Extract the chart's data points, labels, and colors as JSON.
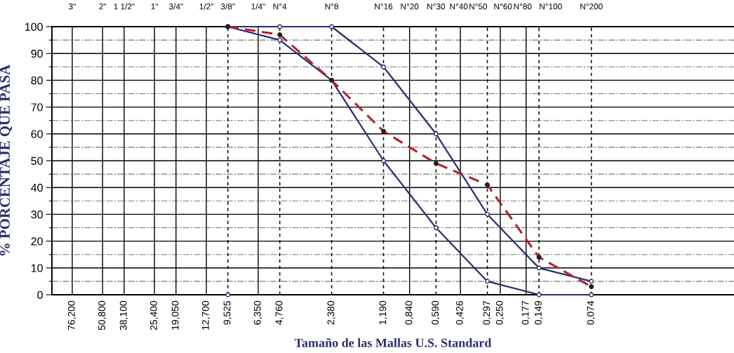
{
  "chart_data": {
    "type": "line",
    "xlabel": "Tamaño de las Mallas U.S. Standard",
    "ylabel": "% PORCENTAJE QUE PASA",
    "log": "x",
    "xlim": [
      100,
      0.011
    ],
    "ylim": [
      0,
      100
    ],
    "xticks": [
      {
        "value": 76.2,
        "label": "76,200"
      },
      {
        "value": 50.8,
        "label": "50,800"
      },
      {
        "value": 38.1,
        "label": "38,100"
      },
      {
        "value": 25.4,
        "label": "25,400"
      },
      {
        "value": 19.05,
        "label": "19,050"
      },
      {
        "value": 12.7,
        "label": "12,700"
      },
      {
        "value": 9.525,
        "label": "9,525"
      },
      {
        "value": 6.35,
        "label": "6,350"
      },
      {
        "value": 4.76,
        "label": "4,760"
      },
      {
        "value": 2.38,
        "label": "2,380"
      },
      {
        "value": 1.19,
        "label": "1,190"
      },
      {
        "value": 0.84,
        "label": "0,840"
      },
      {
        "value": 0.59,
        "label": "0,590"
      },
      {
        "value": 0.426,
        "label": "0,426"
      },
      {
        "value": 0.297,
        "label": "0,297"
      },
      {
        "value": 0.25,
        "label": "0,250"
      },
      {
        "value": 0.177,
        "label": "0,177"
      },
      {
        "value": 0.149,
        "label": "0,149"
      },
      {
        "value": 0.074,
        "label": "0,074"
      }
    ],
    "annotations": [
      "3\"",
      "2\"",
      "1 1/2\"",
      "1\"",
      "3/4\"",
      "1/2\"",
      "3/8\"",
      "1/4\"",
      "N°4",
      "N°8",
      "N°16",
      "N°20",
      "N°30",
      "N°40",
      "N°50",
      "N°60",
      "N°80",
      "N°100",
      "N°200"
    ],
    "yticks": [
      0,
      {
        "value": 5,
        "label": null
      },
      10,
      {
        "value": 15,
        "label": null
      },
      20,
      {
        "value": 25,
        "label": null
      },
      30,
      {
        "value": 35,
        "label": null
      },
      40,
      {
        "value": 45,
        "label": null
      },
      50,
      {
        "value": 55,
        "label": null
      },
      60,
      {
        "value": 65,
        "label": null
      },
      70,
      {
        "value": 75,
        "label": null
      },
      80,
      {
        "value": 85,
        "label": null
      },
      90,
      {
        "value": 95,
        "label": null
      },
      100
    ],
    "grid": "y",
    "marker": "circle",
    "ref_lines": [
      {
        "axis": "x",
        "value": 76.2,
        "line_style": "solid",
        "color": "#000000"
      },
      {
        "axis": "x",
        "value": 50.8,
        "line_style": "solid",
        "color": "#000000"
      },
      {
        "axis": "x",
        "value": 38.1,
        "line_style": "solid",
        "color": "#000000"
      },
      {
        "axis": "x",
        "value": 25.4,
        "line_style": "solid",
        "color": "#000000"
      },
      {
        "axis": "x",
        "value": 19.05,
        "line_style": "solid",
        "color": "#000000"
      },
      {
        "axis": "x",
        "value": 12.7,
        "line_style": "solid",
        "color": "#000000"
      },
      {
        "axis": "x",
        "value": 9.525,
        "line_style": "dashed",
        "color": "#000000"
      },
      {
        "axis": "x",
        "value": 6.35,
        "line_style": "solid",
        "color": "#000000"
      },
      {
        "axis": "x",
        "value": 4.76,
        "line_style": "dashed",
        "color": "#000000"
      },
      {
        "axis": "x",
        "value": 2.38,
        "line_style": "dashed",
        "color": "#000000"
      },
      {
        "axis": "x",
        "value": 1.19,
        "line_style": "dashed",
        "color": "#000000"
      },
      {
        "axis": "x",
        "value": 0.84,
        "line_style": "solid",
        "color": "#000000"
      },
      {
        "axis": "x",
        "value": 0.59,
        "line_style": "dashed",
        "color": "#000000"
      },
      {
        "axis": "x",
        "value": 0.426,
        "line_style": "solid",
        "color": "#000000"
      },
      {
        "axis": "x",
        "value": 0.297,
        "line_style": "dashed",
        "color": "#000000"
      },
      {
        "axis": "x",
        "value": 0.25,
        "line_style": "solid",
        "color": "#000000"
      },
      {
        "axis": "x",
        "value": 0.177,
        "line_style": "solid",
        "color": "#000000"
      },
      {
        "axis": "x",
        "value": 0.149,
        "line_style": "dashed",
        "color": "#000000"
      },
      {
        "axis": "x",
        "value": 0.074,
        "line_style": "dashed",
        "color": "#000000"
      }
    ],
    "series": [
      {
        "color": "#2b2d6e",
        "line_style": "solid",
        "x": [
          9.525,
          4.76,
          2.38,
          1.19,
          0.59,
          0.297,
          0.149,
          0.074
        ],
        "values": [
          100,
          100,
          100,
          85,
          60,
          30,
          10,
          5
        ]
      },
      {
        "color": "#2b2d6e",
        "line_style": "solid",
        "x": [
          9.525,
          4.76,
          2.38,
          1.19,
          0.59,
          0.297,
          0.149,
          0.074
        ],
        "values": [
          100,
          95,
          80,
          50,
          25,
          5,
          0,
          0
        ]
      },
      {
        "color": "#b3242c",
        "line_style": "dashed",
        "x": [
          9.525,
          4.76,
          2.38,
          1.19,
          0.59,
          0.297,
          0.149,
          0.074
        ],
        "values": [
          100,
          97,
          80,
          61,
          49,
          41,
          14,
          3
        ]
      },
      {
        "type": "scatter",
        "color": "#2b2d6e",
        "x": [
          9.525
        ],
        "values": [
          0
        ]
      }
    ]
  }
}
